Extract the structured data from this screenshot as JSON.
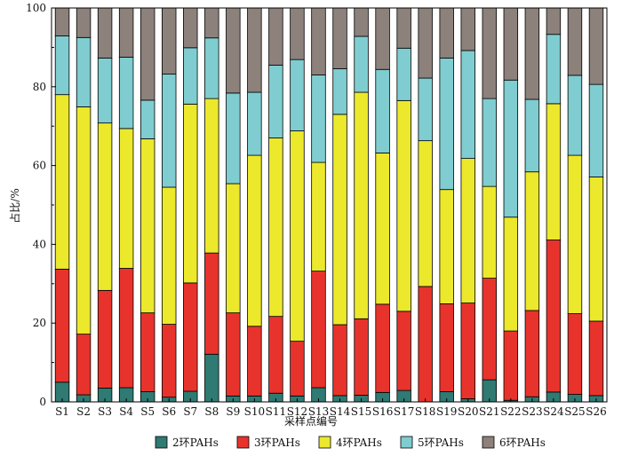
{
  "chart_data": {
    "type": "bar",
    "stacked": true,
    "xlabel": "采样点编号",
    "ylabel": "占比/%",
    "ylim": [
      0,
      100
    ],
    "yticks": [
      0,
      20,
      40,
      60,
      80,
      100
    ],
    "grid": false,
    "legend_position": "bottom",
    "categories": [
      "S1",
      "S2",
      "S3",
      "S4",
      "S5",
      "S6",
      "S7",
      "S8",
      "S9",
      "S10",
      "S11",
      "S12",
      "S13",
      "S14",
      "S15",
      "S16",
      "S17",
      "S18",
      "S19",
      "S20",
      "S21",
      "S22",
      "S23",
      "S24",
      "S25",
      "S26"
    ],
    "series": [
      {
        "name": "2环PAHs",
        "color": "#2f7a72",
        "values": [
          5.0,
          1.8,
          3.5,
          3.6,
          2.6,
          1.2,
          2.7,
          12.1,
          1.5,
          1.5,
          2.2,
          1.5,
          3.6,
          1.6,
          1.7,
          2.4,
          2.9,
          0,
          2.6,
          0.8,
          5.6,
          0.4,
          1.3,
          2.5,
          1.9,
          1.6
        ]
      },
      {
        "name": "3环PAHs",
        "color": "#e8332c",
        "values": [
          28.7,
          15.4,
          24.8,
          30.3,
          20.0,
          18.5,
          27.5,
          25.7,
          21.1,
          17.7,
          19.5,
          13.9,
          29.6,
          18.0,
          19.4,
          22.4,
          20.1,
          29.3,
          22.3,
          24.3,
          25.8,
          17.6,
          21.9,
          38.6,
          20.5,
          18.9
        ]
      },
      {
        "name": "4环PAHs",
        "color": "#ece82c",
        "values": [
          44.3,
          57.7,
          42.5,
          35.5,
          44.2,
          34.8,
          45.4,
          39.2,
          32.8,
          43.4,
          45.3,
          53.4,
          27.6,
          53.4,
          57.5,
          38.4,
          53.5,
          37.0,
          29.0,
          36.7,
          23.3,
          28.9,
          35.2,
          34.6,
          40.2,
          36.6
        ]
      },
      {
        "name": "5环PAHs",
        "color": "#7fcdd0",
        "values": [
          14.9,
          17.6,
          16.5,
          18.1,
          9.8,
          28.7,
          14.3,
          15.4,
          23.0,
          16.0,
          18.5,
          18.1,
          22.2,
          11.6,
          14.2,
          21.2,
          13.3,
          15.9,
          33.4,
          27.4,
          22.3,
          34.8,
          18.4,
          17.6,
          20.3,
          23.5
        ]
      },
      {
        "name": "6环PAHs",
        "color": "#8d817c",
        "values": [
          7.1,
          7.5,
          12.7,
          12.5,
          23.4,
          16.8,
          10.1,
          7.6,
          21.6,
          21.4,
          14.5,
          13.1,
          17.0,
          15.4,
          7.2,
          15.6,
          10.2,
          17.8,
          12.7,
          10.8,
          23.0,
          18.3,
          23.2,
          6.7,
          17.1,
          19.4
        ]
      }
    ]
  }
}
